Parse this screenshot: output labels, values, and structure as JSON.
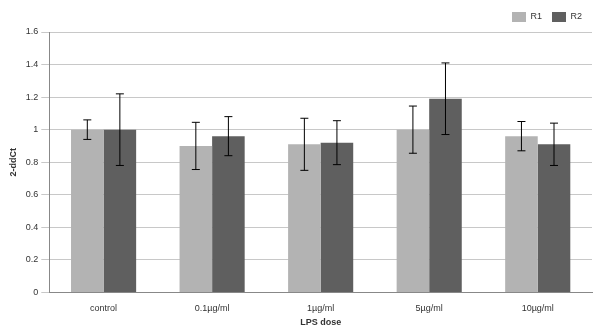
{
  "chart_data": {
    "type": "bar",
    "x_label": "LPS dose",
    "y_label": "2-ddCt",
    "categories": [
      "control",
      "0.1µg/ml",
      "1µg/ml",
      "5µg/ml",
      "10µg/ml"
    ],
    "series": [
      {
        "name": "R1",
        "color": "#b3b3b3",
        "values": [
          1.0,
          0.9,
          0.91,
          1.0,
          0.96
        ],
        "errors": [
          0.06,
          0.145,
          0.16,
          0.145,
          0.09
        ]
      },
      {
        "name": "R2",
        "color": "#5f5f5f",
        "values": [
          1.0,
          0.96,
          0.92,
          1.19,
          0.91
        ],
        "errors": [
          0.22,
          0.12,
          0.135,
          0.22,
          0.13
        ]
      }
    ],
    "ylim": [
      0,
      1.6
    ],
    "yticks": [
      0,
      0.2,
      0.4,
      0.6,
      0.8,
      1,
      1.2,
      1.4,
      1.6
    ],
    "grid": true,
    "legend": "top-right"
  }
}
